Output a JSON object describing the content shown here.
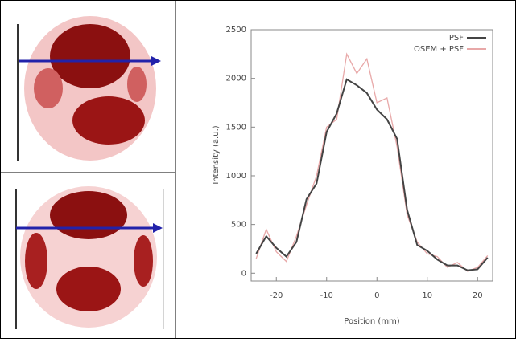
{
  "chart_data": {
    "type": "line",
    "x_label": "Position (mm)",
    "y_label": "Intensity (a.u.)",
    "x": [
      -24,
      -22,
      -20,
      -18,
      -16,
      -14,
      -12,
      -10,
      -8,
      -6,
      -4,
      -2,
      0,
      2,
      4,
      6,
      8,
      10,
      12,
      14,
      16,
      18,
      20,
      22
    ],
    "series": [
      {
        "name": "PSF",
        "color": "#444444",
        "values": [
          200,
          380,
          260,
          170,
          320,
          760,
          920,
          1450,
          1640,
          1990,
          1930,
          1850,
          1680,
          1580,
          1380,
          650,
          290,
          230,
          140,
          80,
          80,
          30,
          40,
          160
        ]
      },
      {
        "name": "OSEM + PSF",
        "color": "#e8a8a8",
        "values": [
          150,
          450,
          220,
          120,
          380,
          700,
          1000,
          1500,
          1580,
          2250,
          2050,
          2200,
          1750,
          1800,
          1300,
          600,
          320,
          200,
          170,
          60,
          110,
          20,
          60,
          180
        ]
      }
    ],
    "xlim": [
      -25,
      23
    ],
    "xticks": [
      -20,
      -10,
      0,
      10,
      20
    ],
    "ylim": [
      -80,
      2500
    ],
    "yticks": [
      0,
      500,
      1000,
      1500,
      2000,
      2500
    ],
    "legend": "upper right"
  }
}
